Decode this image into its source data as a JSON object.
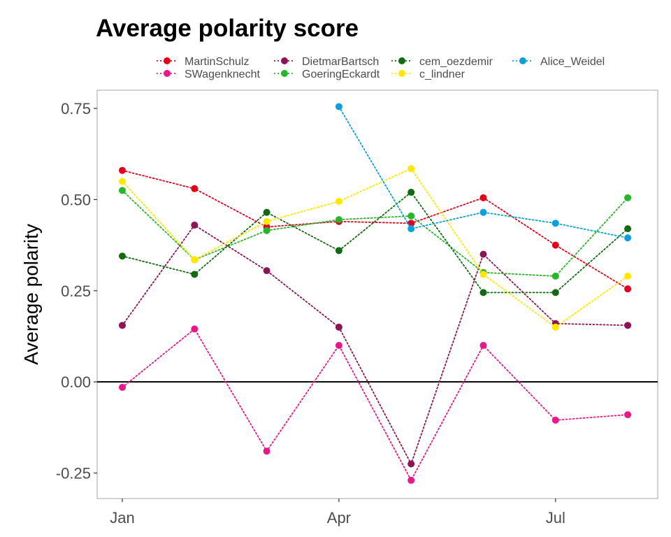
{
  "chart_data": {
    "type": "line",
    "title": "Average polarity score",
    "xlabel": "",
    "ylabel": "Average polarity",
    "x_ticks": [
      "Jan",
      "Apr",
      "Jul"
    ],
    "x": [
      "Jan",
      "Feb",
      "Mar",
      "Apr",
      "May",
      "Jun",
      "Jul",
      "Aug"
    ],
    "y_ticks": [
      "0.75",
      "0.50",
      "0.25",
      "0.00",
      "-0.25"
    ],
    "ylim": [
      -0.32,
      0.8
    ],
    "reference_line_y": 0,
    "grid": false,
    "legend_position": "top",
    "line_style": "dotted",
    "series": [
      {
        "name": "MartinSchulz",
        "color": "#e3001b",
        "values": [
          0.58,
          0.53,
          0.425,
          0.44,
          0.435,
          0.505,
          0.375,
          0.255
        ]
      },
      {
        "name": "SWagenknecht",
        "color": "#e8188a",
        "values": [
          -0.015,
          0.145,
          -0.19,
          0.1,
          -0.27,
          0.1,
          -0.105,
          -0.09
        ]
      },
      {
        "name": "DietmarBartsch",
        "color": "#8e1458",
        "values": [
          0.155,
          0.43,
          0.305,
          0.15,
          -0.225,
          0.35,
          0.16,
          0.155
        ]
      },
      {
        "name": "GoeringEckardt",
        "color": "#27b52a",
        "values": [
          0.525,
          0.335,
          0.415,
          0.445,
          0.455,
          0.3,
          0.29,
          0.505
        ]
      },
      {
        "name": "cem_oezdemir",
        "color": "#126b12",
        "values": [
          0.345,
          0.295,
          0.465,
          0.36,
          0.52,
          0.245,
          0.245,
          0.42
        ]
      },
      {
        "name": "c_lindner",
        "color": "#ffe800",
        "values": [
          0.55,
          0.335,
          0.44,
          0.495,
          0.585,
          0.295,
          0.15,
          0.29
        ]
      },
      {
        "name": "Alice_Weidel",
        "color": "#0aa0dd",
        "values": [
          null,
          null,
          null,
          0.755,
          0.42,
          0.465,
          0.435,
          0.395
        ]
      }
    ]
  }
}
